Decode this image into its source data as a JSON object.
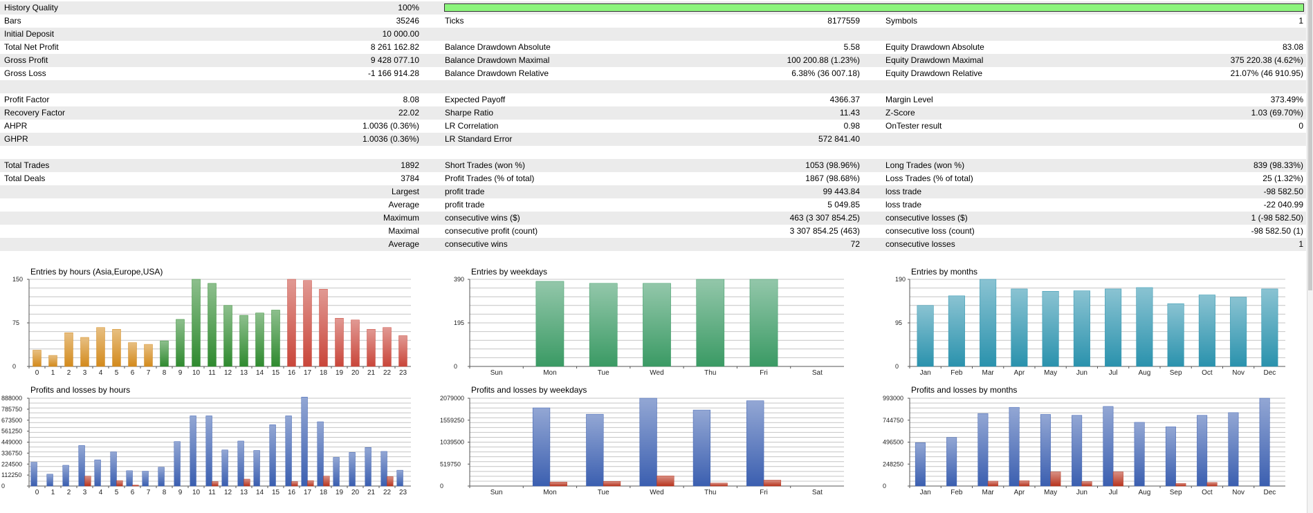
{
  "report": {
    "history_quality": {
      "label": "History Quality",
      "value": "100%",
      "bar_fraction": 1.0,
      "bar_color": "#8cf57c"
    },
    "rows": [
      {
        "shade": false,
        "cells": [
          {
            "key": "c1l",
            "text": "Bars"
          },
          {
            "key": "c1v",
            "text": "35246"
          },
          {
            "key": "c2l",
            "text": "Ticks"
          },
          {
            "key": "c2v",
            "text": "8177559"
          },
          {
            "key": "c3l",
            "text": "Symbols"
          },
          {
            "key": "c3v",
            "text": "1"
          }
        ]
      },
      {
        "shade": true,
        "cells": [
          {
            "key": "c1l",
            "text": "Initial Deposit"
          },
          {
            "key": "c1v",
            "text": "10 000.00"
          }
        ]
      },
      {
        "shade": false,
        "cells": [
          {
            "key": "c1l",
            "text": "Total Net Profit"
          },
          {
            "key": "c1v",
            "text": "8 261 162.82"
          },
          {
            "key": "c2l",
            "text": "Balance Drawdown Absolute"
          },
          {
            "key": "c2v",
            "text": "5.58"
          },
          {
            "key": "c3l",
            "text": "Equity Drawdown Absolute"
          },
          {
            "key": "c3v",
            "text": "83.08"
          }
        ]
      },
      {
        "shade": true,
        "cells": [
          {
            "key": "c1l",
            "text": "Gross Profit"
          },
          {
            "key": "c1v",
            "text": "9 428 077.10"
          },
          {
            "key": "c2l",
            "text": "Balance Drawdown Maximal"
          },
          {
            "key": "c2v",
            "text": "100 200.88 (1.23%)"
          },
          {
            "key": "c3l",
            "text": "Equity Drawdown Maximal"
          },
          {
            "key": "c3v",
            "text": "375 220.38 (4.62%)"
          }
        ]
      },
      {
        "shade": false,
        "cells": [
          {
            "key": "c1l",
            "text": "Gross Loss"
          },
          {
            "key": "c1v",
            "text": "-1 166 914.28"
          },
          {
            "key": "c2l",
            "text": "Balance Drawdown Relative"
          },
          {
            "key": "c2v",
            "text": "6.38% (36 007.18)"
          },
          {
            "key": "c3l",
            "text": "Equity Drawdown Relative"
          },
          {
            "key": "c3v",
            "text": "21.07% (46 910.95)"
          }
        ]
      },
      {
        "shade": true,
        "cells": []
      },
      {
        "shade": false,
        "cells": [
          {
            "key": "c1l",
            "text": "Profit Factor"
          },
          {
            "key": "c1v",
            "text": "8.08"
          },
          {
            "key": "c2l",
            "text": "Expected Payoff"
          },
          {
            "key": "c2v",
            "text": "4366.37"
          },
          {
            "key": "c3l",
            "text": "Margin Level"
          },
          {
            "key": "c3v",
            "text": "373.49%"
          }
        ]
      },
      {
        "shade": true,
        "cells": [
          {
            "key": "c1l",
            "text": "Recovery Factor"
          },
          {
            "key": "c1v",
            "text": "22.02"
          },
          {
            "key": "c2l",
            "text": "Sharpe Ratio"
          },
          {
            "key": "c2v",
            "text": "11.43"
          },
          {
            "key": "c3l",
            "text": "Z-Score"
          },
          {
            "key": "c3v",
            "text": "1.03 (69.70%)"
          }
        ]
      },
      {
        "shade": false,
        "cells": [
          {
            "key": "c1l",
            "text": "AHPR"
          },
          {
            "key": "c1v",
            "text": "1.0036 (0.36%)"
          },
          {
            "key": "c2l",
            "text": "LR Correlation"
          },
          {
            "key": "c2v",
            "text": "0.98"
          },
          {
            "key": "c3l",
            "text": "OnTester result"
          },
          {
            "key": "c3v",
            "text": "0"
          }
        ]
      },
      {
        "shade": true,
        "cells": [
          {
            "key": "c1l",
            "text": "GHPR"
          },
          {
            "key": "c1v",
            "text": "1.0036 (0.36%)"
          },
          {
            "key": "c2l",
            "text": "LR Standard Error"
          },
          {
            "key": "c2v",
            "text": "572 841.40"
          }
        ]
      },
      {
        "shade": false,
        "cells": []
      },
      {
        "shade": true,
        "cells": [
          {
            "key": "c1l",
            "text": "Total Trades"
          },
          {
            "key": "c1v",
            "text": "1892"
          },
          {
            "key": "c2l",
            "text": "Short Trades (won %)"
          },
          {
            "key": "c2v",
            "text": "1053 (98.96%)"
          },
          {
            "key": "c3l",
            "text": "Long Trades (won %)"
          },
          {
            "key": "c3v",
            "text": "839 (98.33%)"
          }
        ]
      },
      {
        "shade": false,
        "cells": [
          {
            "key": "c1l",
            "text": "Total Deals"
          },
          {
            "key": "c1v",
            "text": "3784"
          },
          {
            "key": "c2l",
            "text": "Profit Trades (% of total)"
          },
          {
            "key": "c2v",
            "text": "1867 (98.68%)"
          },
          {
            "key": "c3l",
            "text": "Loss Trades (% of total)"
          },
          {
            "key": "c3v",
            "text": "25 (1.32%)"
          }
        ]
      },
      {
        "shade": true,
        "cells": [
          {
            "key": "c1v",
            "text": "Largest"
          },
          {
            "key": "c2l",
            "text": "profit trade"
          },
          {
            "key": "c2v",
            "text": "99 443.84"
          },
          {
            "key": "c3l",
            "text": "loss trade"
          },
          {
            "key": "c3v",
            "text": "-98 582.50"
          }
        ]
      },
      {
        "shade": false,
        "cells": [
          {
            "key": "c1v",
            "text": "Average"
          },
          {
            "key": "c2l",
            "text": "profit trade"
          },
          {
            "key": "c2v",
            "text": "5 049.85"
          },
          {
            "key": "c3l",
            "text": "loss trade"
          },
          {
            "key": "c3v",
            "text": "-22 040.99"
          }
        ]
      },
      {
        "shade": true,
        "cells": [
          {
            "key": "c1v",
            "text": "Maximum"
          },
          {
            "key": "c2l",
            "text": "consecutive wins ($)"
          },
          {
            "key": "c2v",
            "text": "463 (3 307 854.25)"
          },
          {
            "key": "c3l",
            "text": "consecutive losses ($)"
          },
          {
            "key": "c3v",
            "text": "1 (-98 582.50)"
          }
        ]
      },
      {
        "shade": false,
        "cells": [
          {
            "key": "c1v",
            "text": "Maximal"
          },
          {
            "key": "c2l",
            "text": "consecutive profit (count)"
          },
          {
            "key": "c2v",
            "text": "3 307 854.25 (463)"
          },
          {
            "key": "c3l",
            "text": "consecutive loss (count)"
          },
          {
            "key": "c3v",
            "text": "-98 582.50 (1)"
          }
        ]
      },
      {
        "shade": true,
        "cells": [
          {
            "key": "c1v",
            "text": "Average"
          },
          {
            "key": "c2l",
            "text": "consecutive wins"
          },
          {
            "key": "c2v",
            "text": "72"
          },
          {
            "key": "c3l",
            "text": "consecutive losses"
          },
          {
            "key": "c3v",
            "text": "1"
          }
        ]
      },
      {
        "shade": false,
        "cells": []
      }
    ]
  },
  "colors": {
    "hour_asia": "#d38a1c",
    "hour_europe": "#2f8a2f",
    "hour_usa": "#c9463a",
    "weekday": "#3a9a64",
    "month": "#2a92ad",
    "profit": "#3b5fb0",
    "loss": "#b8351f",
    "grid": "#c4c4c4",
    "axis": "#555555"
  },
  "chart_data": [
    {
      "id": "entries-hours",
      "type": "bar",
      "title": "Entries by hours (Asia,Europe,USA)",
      "yticks": [
        "150",
        "75",
        "0"
      ],
      "ylim": [
        0,
        150
      ],
      "categories": [
        "0",
        "1",
        "2",
        "3",
        "4",
        "5",
        "6",
        "7",
        "8",
        "9",
        "10",
        "11",
        "12",
        "13",
        "14",
        "15",
        "16",
        "17",
        "18",
        "19",
        "20",
        "21",
        "22",
        "23"
      ],
      "series": [
        {
          "values": [
            28,
            19,
            58,
            50,
            67,
            64,
            41,
            38,
            44,
            81,
            150,
            143,
            105,
            88,
            92,
            97,
            150,
            148,
            133,
            83,
            80,
            64,
            67,
            53
          ]
        }
      ]
    },
    {
      "id": "entries-weekdays",
      "type": "bar",
      "title": "Entries by weekdays",
      "yticks": [
        "390",
        "195",
        "0"
      ],
      "ylim": [
        0,
        390
      ],
      "categories": [
        "Sun",
        "Mon",
        "Tue",
        "Wed",
        "Thu",
        "Fri",
        "Sat"
      ],
      "series": [
        {
          "values": [
            0,
            381,
            372,
            372,
            390,
            390,
            0
          ]
        }
      ]
    },
    {
      "id": "entries-months",
      "type": "bar",
      "title": "Entries by months",
      "yticks": [
        "190",
        "95",
        "0"
      ],
      "ylim": [
        0,
        190
      ],
      "categories": [
        "Jan",
        "Feb",
        "Mar",
        "Apr",
        "May",
        "Jun",
        "Jul",
        "Aug",
        "Sep",
        "Oct",
        "Nov",
        "Dec"
      ],
      "series": [
        {
          "values": [
            133,
            154,
            190,
            169,
            164,
            165,
            169,
            172,
            137,
            156,
            151,
            169
          ]
        }
      ]
    },
    {
      "id": "pl-hours",
      "type": "bar",
      "title": "Profits and losses by hours",
      "yticks": [
        "888000",
        "785750",
        "673500",
        "561250",
        "449000",
        "336750",
        "224500",
        "112250",
        "0"
      ],
      "ylim": [
        0,
        888000
      ],
      "categories": [
        "0",
        "1",
        "2",
        "3",
        "4",
        "5",
        "6",
        "7",
        "8",
        "9",
        "10",
        "11",
        "12",
        "13",
        "14",
        "15",
        "16",
        "17",
        "18",
        "19",
        "20",
        "21",
        "22",
        "23"
      ],
      "series": [
        {
          "values": [
            240000,
            120000,
            210000,
            410000,
            265000,
            345000,
            155000,
            150000,
            190000,
            450000,
            710000,
            710000,
            365000,
            455000,
            360000,
            620000,
            710000,
            900000,
            650000,
            290000,
            340000,
            390000,
            350000,
            160000
          ]
        },
        {
          "values": [
            0,
            0,
            0,
            100000,
            0,
            55000,
            10000,
            0,
            0,
            0,
            0,
            45000,
            0,
            70000,
            0,
            0,
            45000,
            55000,
            100000,
            0,
            0,
            0,
            95000,
            0
          ]
        }
      ]
    },
    {
      "id": "pl-weekdays",
      "type": "bar",
      "title": "Profits and losses by weekdays",
      "yticks": [
        "2079000",
        "1559250",
        "1039500",
        "519750",
        "0"
      ],
      "ylim": [
        0,
        2079000
      ],
      "categories": [
        "Sun",
        "Mon",
        "Tue",
        "Wed",
        "Thu",
        "Fri",
        "Sat"
      ],
      "series": [
        {
          "values": [
            0,
            1850000,
            1700000,
            2079000,
            1800000,
            2020000,
            0
          ]
        },
        {
          "values": [
            0,
            95000,
            110000,
            240000,
            70000,
            140000,
            0
          ]
        }
      ]
    },
    {
      "id": "pl-months",
      "type": "bar",
      "title": "Profits and losses by months",
      "yticks": [
        "993000",
        "744750",
        "496500",
        "248250",
        "0"
      ],
      "ylim": [
        0,
        993000
      ],
      "categories": [
        "Jan",
        "Feb",
        "Mar",
        "Apr",
        "May",
        "Jun",
        "Jul",
        "Aug",
        "Sep",
        "Oct",
        "Nov",
        "Dec"
      ],
      "series": [
        {
          "values": [
            490000,
            550000,
            820000,
            890000,
            810000,
            800000,
            900000,
            720000,
            670000,
            800000,
            830000,
            993000
          ]
        },
        {
          "values": [
            0,
            0,
            55000,
            60000,
            160000,
            50000,
            160000,
            0,
            30000,
            40000,
            0,
            0
          ]
        }
      ]
    }
  ]
}
